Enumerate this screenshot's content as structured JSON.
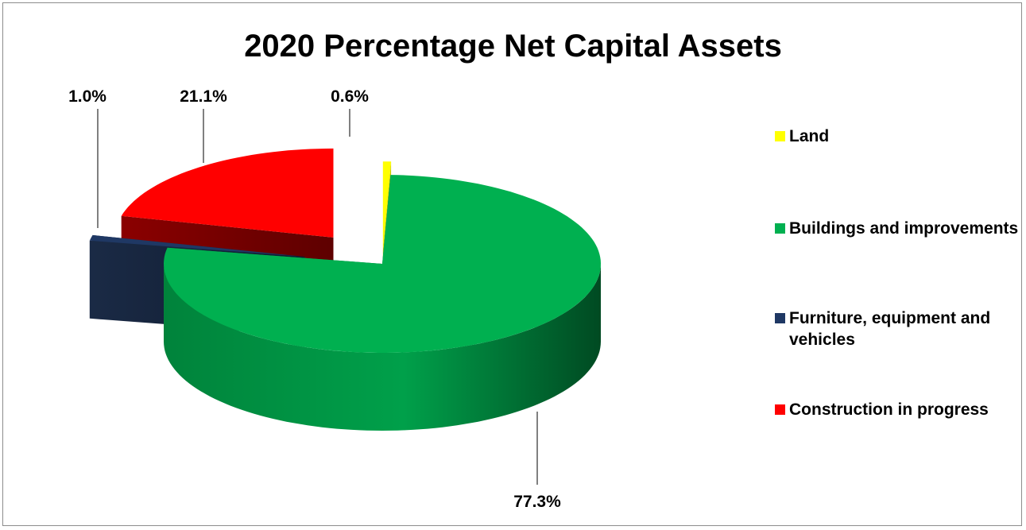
{
  "chart_data": {
    "type": "pie",
    "title": "2020 Percentage Net Capital Assets",
    "slices": [
      {
        "name": "Land",
        "value": 0.6,
        "label": "0.6%",
        "color": "#FFFF00"
      },
      {
        "name": "Buildings and improvements",
        "value": 77.3,
        "label": "77.3%",
        "color": "#00B050"
      },
      {
        "name": "Furniture, equipment and vehicles",
        "value": 1.0,
        "label": "1.0%",
        "color": "#1F3864"
      },
      {
        "name": "Construction in progress",
        "value": 21.1,
        "label": "21.1%",
        "color": "#FF0000"
      }
    ],
    "legend_position": "right",
    "exploded": true,
    "style": "3d"
  }
}
